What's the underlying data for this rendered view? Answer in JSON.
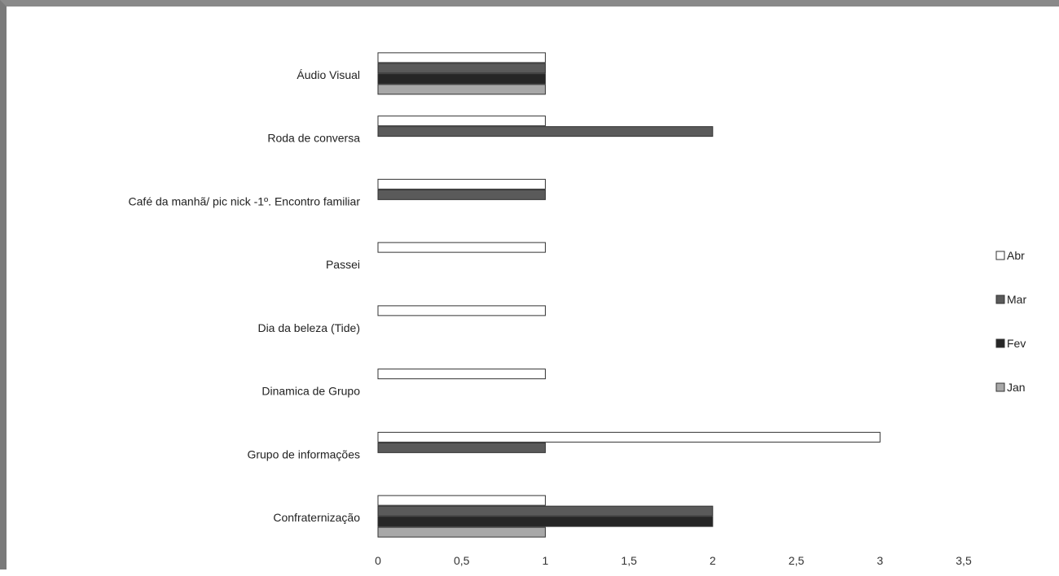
{
  "chart_data": {
    "type": "bar",
    "orientation": "horizontal",
    "categories": [
      "Áudio Visual",
      "Roda de conversa",
      "Café da manhã/ pic nick -1º. Encontro familiar",
      "Passei",
      "Dia da beleza (Tide)",
      "Dinamica de Grupo",
      "Grupo de informações",
      "Confraternização"
    ],
    "series": [
      {
        "name": "Abr",
        "color": "#ffffff",
        "values": [
          1,
          1,
          1,
          1,
          1,
          1,
          3,
          1
        ]
      },
      {
        "name": "Mar",
        "color": "#5a5a5a",
        "values": [
          1,
          2,
          1,
          0,
          0,
          0,
          1,
          2
        ]
      },
      {
        "name": "Fev",
        "color": "#262626",
        "values": [
          1,
          0,
          0,
          0,
          0,
          0,
          0,
          2
        ]
      },
      {
        "name": "Jan",
        "color": "#a8a8a8",
        "values": [
          1,
          0,
          0,
          0,
          0,
          0,
          0,
          1
        ]
      }
    ],
    "x_ticks": [
      "0",
      "0,5",
      "1",
      "1,5",
      "2",
      "2,5",
      "3",
      "3,5"
    ],
    "xlim": [
      0,
      3.5
    ],
    "grid": false,
    "legend_position": "right",
    "title": "",
    "xlabel": "",
    "ylabel": ""
  }
}
